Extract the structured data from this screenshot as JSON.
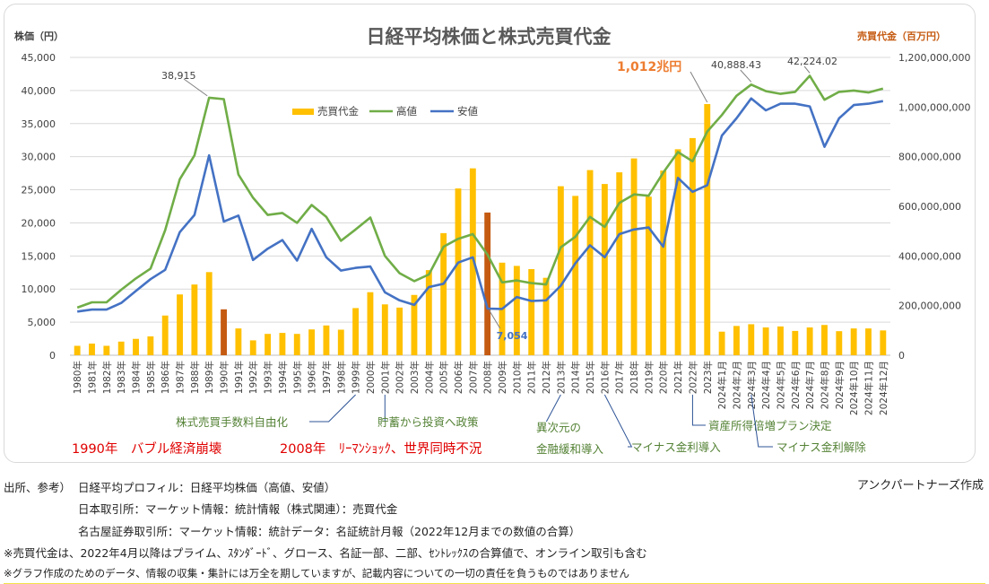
{
  "chart_data": {
    "type": "bar+line",
    "title": "日経平均株価と株式売買代金",
    "ylabel_left": "株価（円）",
    "ylabel_right": "売買代金（百万円）",
    "ylim_left": [
      0,
      45000
    ],
    "ylim_right": [
      0,
      1200000000
    ],
    "left_ticks": [
      "0",
      "5,000",
      "10,000",
      "15,000",
      "20,000",
      "25,000",
      "30,000",
      "35,000",
      "40,000",
      "45,000"
    ],
    "right_ticks": [
      "0",
      "200,000,000",
      "400,000,000",
      "600,000,000",
      "800,000,000",
      "1,000,000,000",
      "1,200,000,000"
    ],
    "categories": [
      "1980年",
      "1981年",
      "1982年",
      "1983年",
      "1984年",
      "1985年",
      "1986年",
      "1987年",
      "1988年",
      "1989年",
      "1990年",
      "1991年",
      "1992年",
      "1993年",
      "1994年",
      "1995年",
      "1996年",
      "1997年",
      "1998年",
      "1999年",
      "2000年",
      "2001年",
      "2002年",
      "2003年",
      "2004年",
      "2005年",
      "2006年",
      "2007年",
      "2008年",
      "2009年",
      "2010年",
      "2011年",
      "2012年",
      "2013年",
      "2014年",
      "2015年",
      "2016年",
      "2017年",
      "2018年",
      "2019年",
      "2020年",
      "2021年",
      "2022年",
      "2023年",
      "2024年1月",
      "2024年2月",
      "2024年3月",
      "2024年4月",
      "2024年5月",
      "2024年6月",
      "2024年7月",
      "2024年8月",
      "2024年9月",
      "2024年10月",
      "2024年11月",
      "2024年12月"
    ],
    "series": [
      {
        "name": "売買代金",
        "kind": "bar",
        "color": "#ffc000",
        "highlight_color": "#c55a11",
        "highlight_indices": [
          10,
          28
        ],
        "values": [
          38000000,
          47000000,
          38000000,
          55000000,
          66000000,
          76000000,
          160000000,
          245000000,
          285000000,
          335000000,
          185000000,
          108000000,
          60000000,
          86000000,
          90000000,
          86000000,
          104000000,
          120000000,
          103000000,
          190000000,
          254000000,
          205000000,
          192000000,
          243000000,
          343000000,
          492000000,
          672000000,
          753000000,
          575000000,
          373000000,
          360000000,
          347000000,
          312000000,
          681000000,
          642000000,
          746000000,
          690000000,
          737000000,
          793000000,
          639000000,
          744000000,
          830000000,
          875000000,
          1012000000,
          95000000,
          118000000,
          125000000,
          112000000,
          116000000,
          98000000,
          112000000,
          122000000,
          97000000,
          108000000,
          108000000,
          100000000
        ]
      },
      {
        "name": "高値",
        "kind": "line",
        "color": "#70ad47",
        "values": [
          7200,
          8000,
          8000,
          9900,
          11600,
          13100,
          18900,
          26600,
          30200,
          38915,
          38700,
          27300,
          23800,
          21200,
          21500,
          20000,
          22700,
          20900,
          17300,
          19000,
          20800,
          15000,
          12400,
          11200,
          12200,
          16400,
          17600,
          18300,
          15200,
          11000,
          11300,
          10900,
          10700,
          16300,
          17900,
          20900,
          19400,
          23000,
          24300,
          24100,
          27600,
          30700,
          29300,
          33800,
          36300,
          39200,
          40888,
          39900,
          39500,
          39800,
          42224,
          38600,
          39800,
          40000,
          39700,
          40300
        ]
      },
      {
        "name": "安値",
        "kind": "line",
        "color": "#4472c4",
        "values": [
          6600,
          6900,
          6900,
          7900,
          9700,
          11500,
          12900,
          18600,
          21200,
          30200,
          20200,
          21100,
          14400,
          16100,
          17400,
          14300,
          19100,
          14800,
          12800,
          13200,
          13400,
          9500,
          8300,
          7600,
          10300,
          10800,
          14000,
          14800,
          7054,
          7000,
          8800,
          8200,
          8300,
          10500,
          13900,
          16600,
          14800,
          18300,
          19000,
          19300,
          16400,
          26800,
          24700,
          25700,
          33200,
          35800,
          38800,
          37000,
          38000,
          38000,
          37600,
          31500,
          35800,
          37800,
          38000,
          38400
        ]
      }
    ],
    "legend_position": "top-center",
    "grid": "horizontal",
    "annotations": {
      "peak_1989": "38,915",
      "low_2008": "7,054",
      "turnover_2023": "1,012兆円",
      "high_2024_mar": "40,888.43",
      "high_2024_jul": "42,224.02"
    },
    "events": [
      {
        "label": "株式売買手数料自由化"
      },
      {
        "label": "貯蓄から投資へ政策"
      },
      {
        "label": "異次元の"
      },
      {
        "label": "金融緩和導入"
      },
      {
        "label": "マイナス金利導入"
      },
      {
        "label": "資産所得倍増プラン決定"
      },
      {
        "label": "マイナス金利解除"
      }
    ],
    "era_notes": {
      "bubble": "1990年　バブル経済崩壊",
      "lehman": "2008年　ﾘｰﾏﾝｼｮｯｸ、世界同時不況"
    }
  },
  "footer": {
    "sources_label": "出所、参考）",
    "author": "アンクパートナーズ作成",
    "lines": [
      "日経平均プロフィル：日経平均株価（高値、安値）",
      "日本取引所：マーケット情報：統計情報（株式関連）：売買代金",
      "名古屋証券取引所：マーケット情報：統計データ：名証統計月報（2022年12月までの数値の合算）"
    ],
    "note1": "※売買代金は、2022年4月以降はプライム、ｽﾀﾝﾀﾞｰﾄﾞ、グロース、名証一部、二部、ｾﾝﾄﾚｯｸｽの合算値で、オンライン取引も含む",
    "note2": "※グラフ作成のためのデータ、情報の収集・集計には万全を期していますが、記載内容についての一切の責任を負うものではありません"
  }
}
